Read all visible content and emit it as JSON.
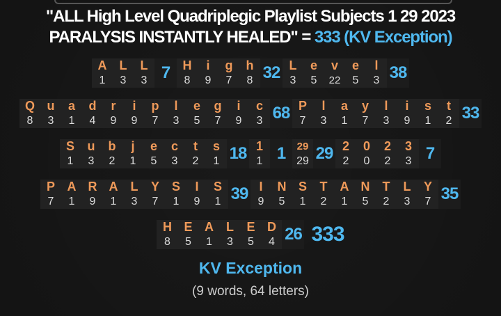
{
  "title": {
    "line1": "\"ALL High Level Quadriplegic Playlist Subjects 1 29 2023",
    "line2_prefix": "PARALYSIS INSTANTLY HEALED\" = ",
    "line2_value": "333 (KV Exception)"
  },
  "rows": [
    [
      {
        "letters": [
          "A",
          "L",
          "L"
        ],
        "values": [
          "1",
          "3",
          "3"
        ],
        "total": "7"
      },
      {
        "letters": [
          "H",
          "i",
          "g",
          "h"
        ],
        "values": [
          "8",
          "9",
          "7",
          "8"
        ],
        "total": "32"
      },
      {
        "letters": [
          "L",
          "e",
          "v",
          "e",
          "l"
        ],
        "values": [
          "3",
          "5",
          "22",
          "5",
          "3"
        ],
        "total": "38"
      }
    ],
    [
      {
        "letters": [
          "Q",
          "u",
          "a",
          "d",
          "r",
          "i",
          "p",
          "l",
          "e",
          "g",
          "i",
          "c"
        ],
        "values": [
          "8",
          "3",
          "1",
          "4",
          "9",
          "9",
          "7",
          "3",
          "5",
          "7",
          "9",
          "3"
        ],
        "total": "68"
      },
      {
        "letters": [
          "P",
          "l",
          "a",
          "y",
          "l",
          "i",
          "s",
          "t"
        ],
        "values": [
          "7",
          "3",
          "1",
          "7",
          "3",
          "9",
          "1",
          "2"
        ],
        "total": "33"
      }
    ],
    [
      {
        "letters": [
          "S",
          "u",
          "b",
          "j",
          "e",
          "c",
          "t",
          "s"
        ],
        "values": [
          "1",
          "3",
          "2",
          "1",
          "5",
          "3",
          "2",
          "1"
        ],
        "total": "18"
      },
      {
        "letters": [
          "1"
        ],
        "values": [
          "1"
        ],
        "total": "1"
      },
      {
        "letters": [
          "29"
        ],
        "values": [
          "29"
        ],
        "total": "29"
      },
      {
        "letters": [
          "2",
          "0",
          "2",
          "3"
        ],
        "values": [
          "2",
          "0",
          "2",
          "3"
        ],
        "total": "7"
      }
    ],
    [
      {
        "letters": [
          "P",
          "A",
          "R",
          "A",
          "L",
          "Y",
          "S",
          "I",
          "S"
        ],
        "values": [
          "7",
          "1",
          "9",
          "1",
          "3",
          "7",
          "1",
          "9",
          "1"
        ],
        "total": "39"
      },
      {
        "letters": [
          "I",
          "N",
          "S",
          "T",
          "A",
          "N",
          "T",
          "L",
          "Y"
        ],
        "values": [
          "9",
          "5",
          "1",
          "2",
          "1",
          "5",
          "2",
          "3",
          "7"
        ],
        "total": "35"
      }
    ],
    [
      {
        "letters": [
          "H",
          "E",
          "A",
          "L",
          "E",
          "D"
        ],
        "values": [
          "8",
          "5",
          "1",
          "3",
          "5",
          "4"
        ],
        "total": "26"
      }
    ]
  ],
  "grand_total": "333",
  "cipher_name": "KV Exception",
  "stats": "(9 words, 64 letters)",
  "colors": {
    "letter": "#ef9a5a",
    "total": "#4fb8ef",
    "value": "#dddddd",
    "background": "#141414"
  }
}
